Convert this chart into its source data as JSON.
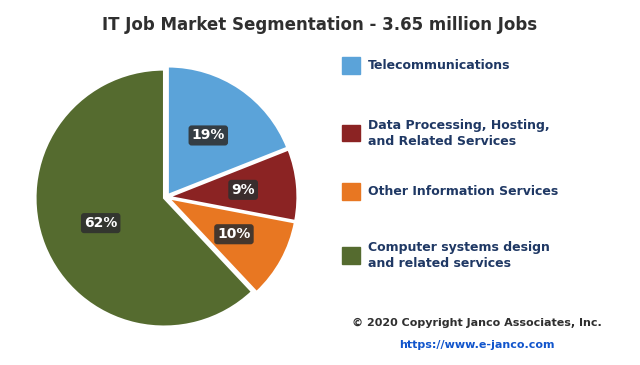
{
  "title": "IT Job Market Segmentation - 3.65 million Jobs",
  "slices": [
    19,
    9,
    10,
    62
  ],
  "colors": [
    "#5BA3D9",
    "#8B2323",
    "#E87722",
    "#556B2F"
  ],
  "pct_labels": [
    "19%",
    "9%",
    "10%",
    "62%"
  ],
  "explode": [
    0.02,
    0.02,
    0.02,
    0.02
  ],
  "start_angle": 90,
  "legend_labels": [
    "Telecommunications",
    "Data Processing, Hosting,\nand Related Services",
    "Other Information Services",
    "Computer systems design\nand related services"
  ],
  "legend_colors": [
    "#5BA3D9",
    "#8B2323",
    "#E87722",
    "#556B2F"
  ],
  "copyright_text": "© 2020 Copyright Janco Associates, Inc.",
  "url_text": "https://www.e-janco.com",
  "pct_box_color": "#2F2F2F",
  "pct_text_color": "#FFFFFF",
  "title_color": "#2F2F2F",
  "title_fontsize": 12,
  "legend_fontsize": 9,
  "copyright_fontsize": 8,
  "pct_fontsize": 10,
  "pct_r": [
    0.58,
    0.6,
    0.6,
    0.55
  ]
}
